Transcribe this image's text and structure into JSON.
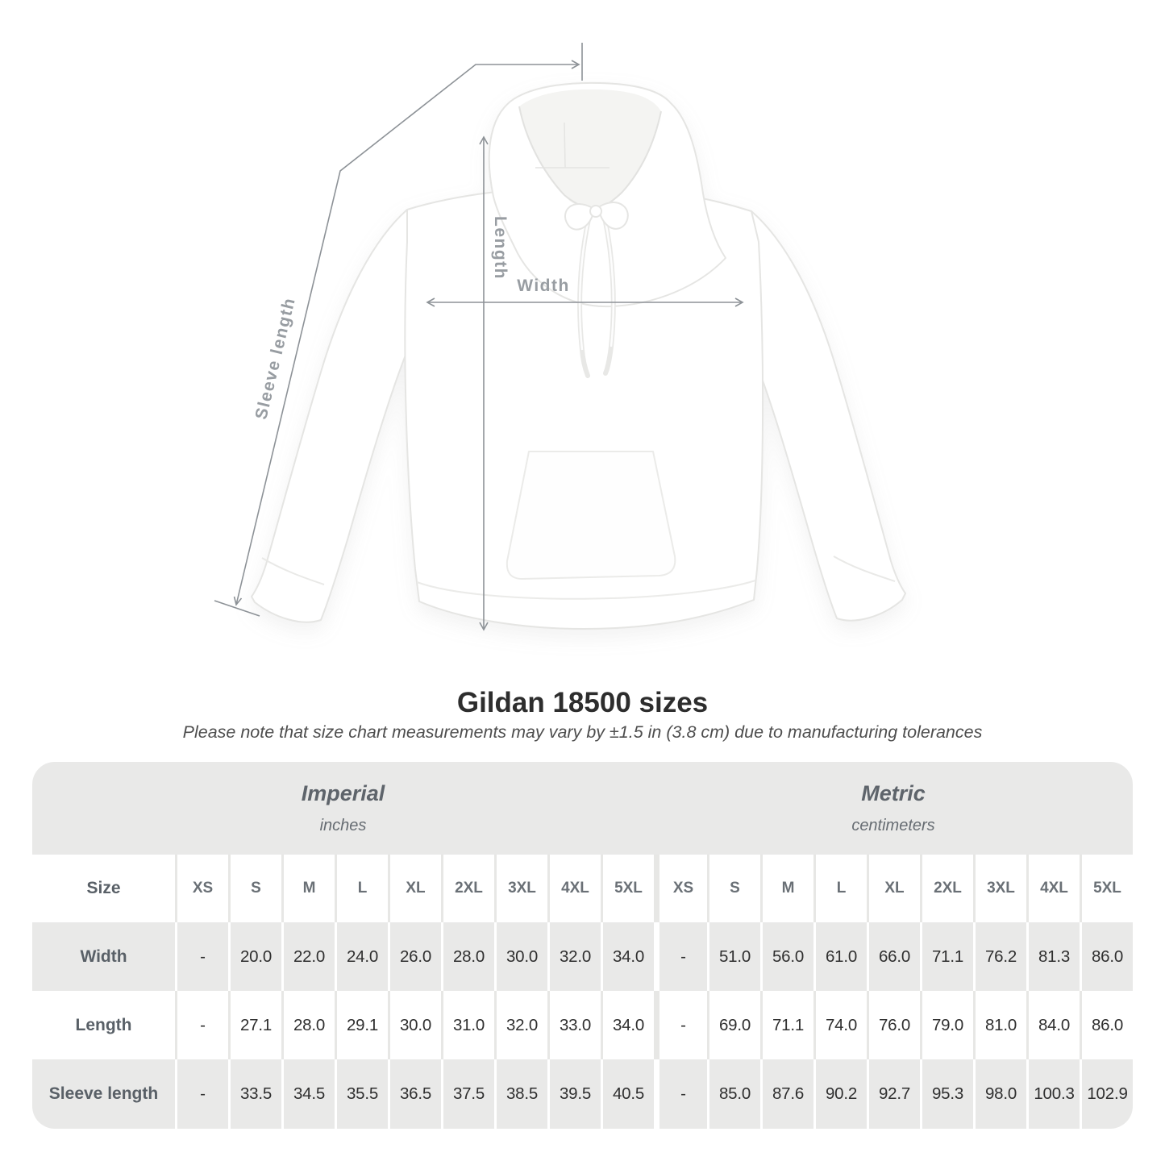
{
  "diagram": {
    "length_label": "Length",
    "width_label": "Width",
    "sleeve_label": "Sleeve length"
  },
  "title": "Gildan 18500 sizes",
  "subtitle": "Please note that size chart measurements may vary by ±1.5 in (3.8 cm) due to manufacturing tolerances",
  "table": {
    "unit_groups": [
      {
        "label": "Imperial",
        "sublabel": "inches"
      },
      {
        "label": "Metric",
        "sublabel": "centimeters"
      }
    ],
    "size_header": "Size",
    "sizes": [
      "XS",
      "S",
      "M",
      "L",
      "XL",
      "2XL",
      "3XL",
      "4XL",
      "5XL"
    ],
    "rows": [
      {
        "label": "Width",
        "imperial": [
          "-",
          "20.0",
          "22.0",
          "24.0",
          "26.0",
          "28.0",
          "30.0",
          "32.0",
          "34.0"
        ],
        "metric": [
          "-",
          "51.0",
          "56.0",
          "61.0",
          "66.0",
          "71.1",
          "76.2",
          "81.3",
          "86.0"
        ]
      },
      {
        "label": "Length",
        "imperial": [
          "-",
          "27.1",
          "28.0",
          "29.1",
          "30.0",
          "31.0",
          "32.0",
          "33.0",
          "34.0"
        ],
        "metric": [
          "-",
          "69.0",
          "71.1",
          "74.0",
          "76.0",
          "79.0",
          "81.0",
          "84.0",
          "86.0"
        ]
      },
      {
        "label": "Sleeve length",
        "imperial": [
          "-",
          "33.5",
          "34.5",
          "35.5",
          "36.5",
          "37.5",
          "38.5",
          "39.5",
          "40.5"
        ],
        "metric": [
          "-",
          "85.0",
          "87.6",
          "90.2",
          "92.7",
          "95.3",
          "98.0",
          "100.3",
          "102.9"
        ]
      }
    ]
  },
  "colors": {
    "table_band": "#e9e9e8",
    "row_separator_light": "#e7e7e5",
    "header_text": "#6a7076",
    "row_label_text": "#596067",
    "value_text": "#2f2f2f",
    "measure_line": "#8d9297",
    "measure_label": "#989da2"
  }
}
